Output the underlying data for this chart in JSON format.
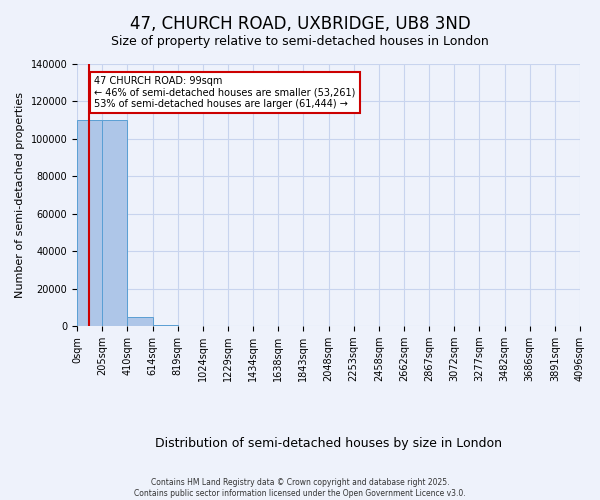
{
  "title": "47, CHURCH ROAD, UXBRIDGE, UB8 3ND",
  "subtitle": "Size of property relative to semi-detached houses in London",
  "xlabel": "Distribution of semi-detached houses by size in London",
  "ylabel": "Number of semi-detached properties",
  "bar_color": "#aec6e8",
  "bar_edge_color": "#5a9fd4",
  "annotation_box_color": "#cc0000",
  "annotation_line1": "47 CHURCH ROAD: 99sqm",
  "annotation_line2": "← 46% of semi-detached houses are smaller (53,261)",
  "annotation_line3": "53% of semi-detached houses are larger (61,444) →",
  "property_size": 99,
  "property_line_color": "#cc0000",
  "footnote1": "Contains HM Land Registry data © Crown copyright and database right 2025.",
  "footnote2": "Contains public sector information licensed under the Open Government Licence v3.0.",
  "ylim": [
    0,
    140000
  ],
  "yticks": [
    0,
    20000,
    40000,
    60000,
    80000,
    100000,
    120000,
    140000
  ],
  "bin_labels": [
    "0sqm",
    "205sqm",
    "410sqm",
    "614sqm",
    "819sqm",
    "1024sqm",
    "1229sqm",
    "1434sqm",
    "1638sqm",
    "1843sqm",
    "2048sqm",
    "2253sqm",
    "2458sqm",
    "2662sqm",
    "2867sqm",
    "3072sqm",
    "3277sqm",
    "3482sqm",
    "3686sqm",
    "3891sqm",
    "4096sqm"
  ],
  "counts": [
    110000,
    110000,
    5000,
    400,
    80,
    30,
    15,
    8,
    4,
    2,
    1,
    1,
    0,
    0,
    0,
    0,
    0,
    0,
    0,
    0
  ],
  "background_color": "#eef2fb",
  "grid_color": "#c8d4ee",
  "title_fontsize": 12,
  "subtitle_fontsize": 9,
  "tick_fontsize": 7,
  "ylabel_fontsize": 8,
  "xlabel_fontsize": 9
}
